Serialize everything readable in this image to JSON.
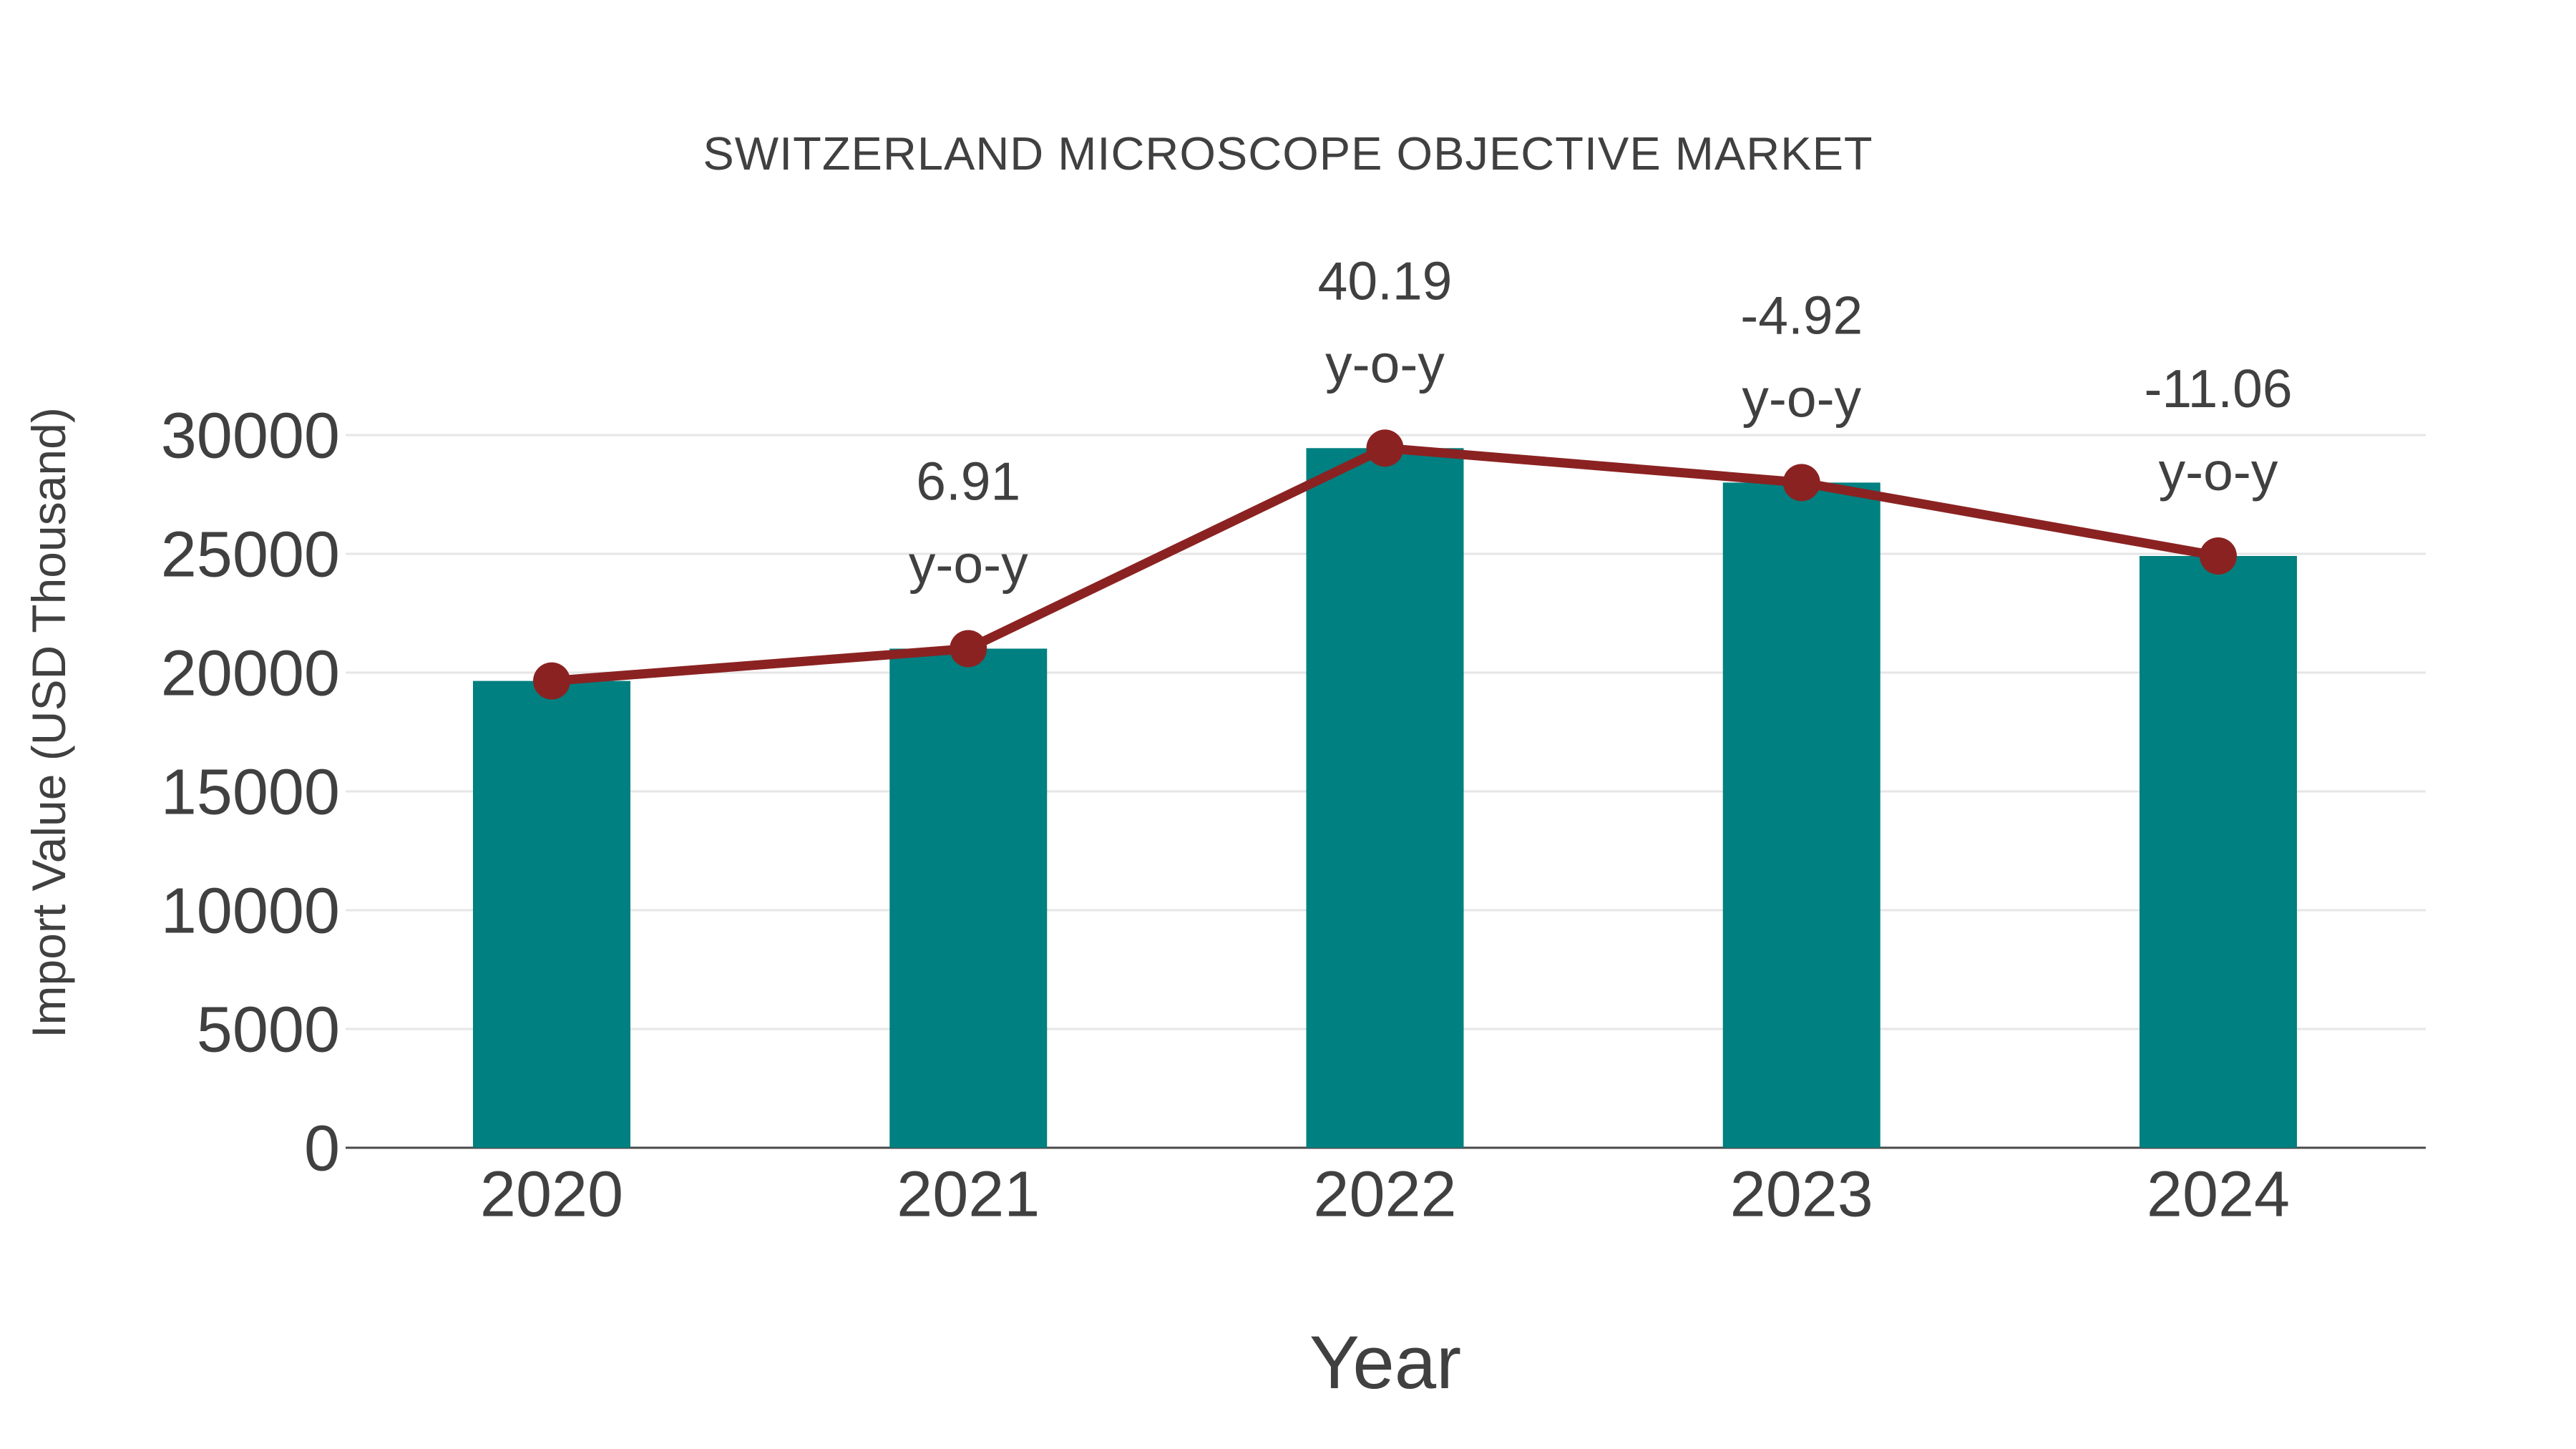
{
  "chart": {
    "title": "SWITZERLAND MICROSCOPE OBJECTIVE MARKET",
    "x_axis_label": "Year",
    "y_axis_label": "Import Value (USD Thousand)",
    "colors": {
      "bar": "#008080",
      "line": "#8B2222",
      "marker": "#8B2222",
      "text": "#404040",
      "grid": "#E6E6E6",
      "axis": "#4A4A4A",
      "background": "#FFFFFF"
    }
  },
  "chart_data": {
    "type": "bar",
    "title": "SWITZERLAND MICROSCOPE OBJECTIVE MARKET",
    "xlabel": "Year",
    "ylabel": "Import Value (USD Thousand)",
    "categories": [
      "2020",
      "2021",
      "2022",
      "2023",
      "2024"
    ],
    "series": [
      {
        "name": "Import Value (bars)",
        "type": "bar",
        "color": "#008080",
        "values": [
          19650,
          21010,
          29450,
          28000,
          24910
        ]
      },
      {
        "name": "Import Value (trend line)",
        "type": "line",
        "color": "#8B2222",
        "values": [
          19650,
          21010,
          29450,
          28000,
          24910
        ]
      }
    ],
    "annotations": [
      {
        "category": "2021",
        "line1": "6.91",
        "line2": "y-o-y"
      },
      {
        "category": "2022",
        "line1": "40.19",
        "line2": "y-o-y"
      },
      {
        "category": "2023",
        "line1": "-4.92",
        "line2": "y-o-y"
      },
      {
        "category": "2024",
        "line1": "-11.06",
        "line2": "y-o-y"
      }
    ],
    "y_ticks": [
      0,
      5000,
      10000,
      15000,
      20000,
      25000,
      30000
    ],
    "ylim": [
      0,
      32000
    ],
    "grid": "horizontal",
    "legend": "none"
  }
}
